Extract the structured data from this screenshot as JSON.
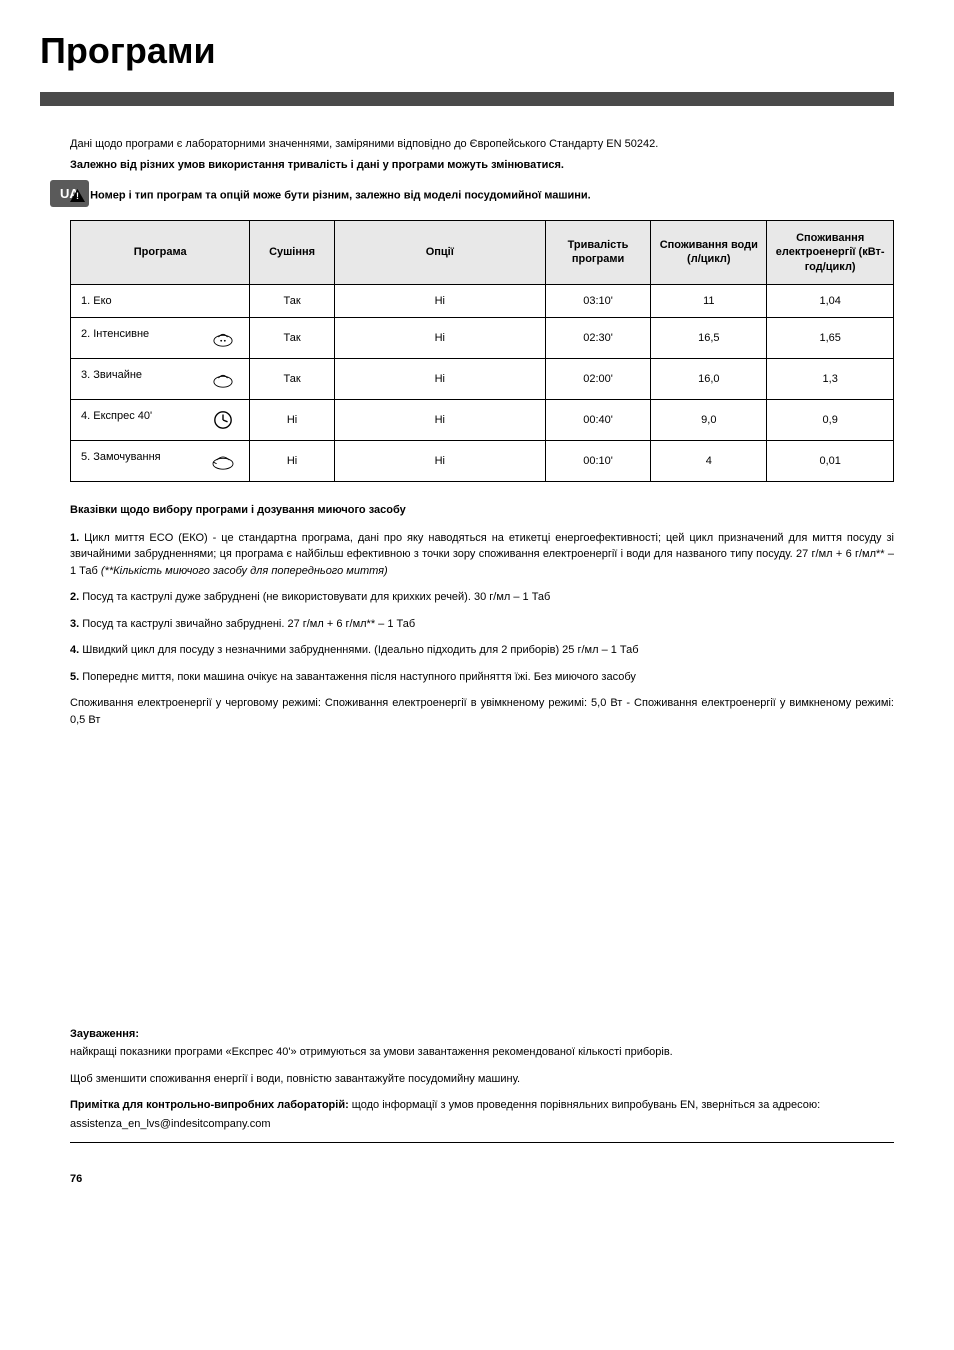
{
  "language_badge": "UA",
  "page_title": "Програми",
  "intro": {
    "line1": "Дані щодо програми є лабораторними значеннями, заміряними відповідно до Європейського Стандарту EN 50242.",
    "line2": "Залежно від різних умов використання тривалість і дані у програми можуть змінюватися."
  },
  "note": "Номер і тип програм та опцій може бути різним, залежно від моделі посудомийної машини.",
  "table": {
    "headers": {
      "program": "Програма",
      "drying": "Сушіння",
      "options": "Опції",
      "duration": "Тривалість програми",
      "water": "Споживання води (л/цикл)",
      "energy": "Споживання електроенергії (кВт-год/цикл)"
    },
    "rows": [
      {
        "name": "1. Еко",
        "drying": "Так",
        "options": "Ні",
        "duration": "03:10'",
        "water": "11",
        "energy": "1,04",
        "icon": ""
      },
      {
        "name": "2. Інтенсивне",
        "drying": "Так",
        "options": "Ні",
        "duration": "02:30'",
        "water": "16,5",
        "energy": "1,65",
        "icon": "intensive"
      },
      {
        "name": "3. Звичайне",
        "drying": "Так",
        "options": "Ні",
        "duration": "02:00'",
        "water": "16,0",
        "energy": "1,3",
        "icon": "normal"
      },
      {
        "name": "4. Експрес 40'",
        "drying": "Ні",
        "options": "Ні",
        "duration": "00:40'",
        "water": "9,0",
        "energy": "0,9",
        "icon": "express"
      },
      {
        "name": "5. Замочування",
        "drying": "Ні",
        "options": "Ні",
        "duration": "00:10'",
        "water": "4",
        "energy": "0,01",
        "icon": "soak"
      }
    ]
  },
  "instructions": {
    "heading": "Вказівки щодо вибору програми і дозування миючого засобу",
    "items": [
      {
        "num": "1.",
        "text": "Цикл миття ECO (ЕКО) - це стандартна програма, дані про яку наводяться на етикетці енергоефективності; цей цикл призначений для миття посуду зі звичайними забрудненнями; ця програма є найбільш ефективною з точки зору споживання електроенергії і води для названого типу посуду. 27 г/мл + 6 г/мл** – 1 Таб ",
        "italic": "(**Кількість миючого засобу для попереднього миття)"
      },
      {
        "num": "2.",
        "text": "Посуд та каструлі дуже забруднені (не використовувати для крихких речей). 30 г/мл – 1 Таб"
      },
      {
        "num": "3.",
        "text": "Посуд та каструлі звичайно забруднені. 27 г/мл + 6 г/мл** – 1 Таб"
      },
      {
        "num": "4.",
        "text": "Швидкий цикл для посуду з незначними забрудненнями. (Ідеально підходить для 2 приборів) 25 г/мл – 1 Таб"
      },
      {
        "num": "5.",
        "text": "Попереднє миття, поки машина очікує на завантаження після наступного прийняття їжі. Без миючого засобу"
      }
    ],
    "standby": "Споживання електроенергії у черговому режимі: Споживання електроенергії в увімкненому режимі: 5,0 Вт - Споживання електроенергії у вимкненому режимі: 0,5 Вт"
  },
  "footer": {
    "remark_heading": "Зауваження:",
    "remark_text": "найкращі показники програми «Експрес 40'» отримуються за умови завантаження рекомендованої кількості приборів.",
    "reduce_text": "Щоб зменшити споживання енергії і води, повністю завантажуйте посудомийну машину.",
    "lab_note_bold": "Примітка для контрольно-випробних лабораторій:",
    "lab_note_rest": " щодо інформації з умов проведення порівняльних випробувань EN, зверніться за адресою:",
    "email": "assistenza_en_lvs@indesitcompany.com"
  },
  "page_number": "76"
}
